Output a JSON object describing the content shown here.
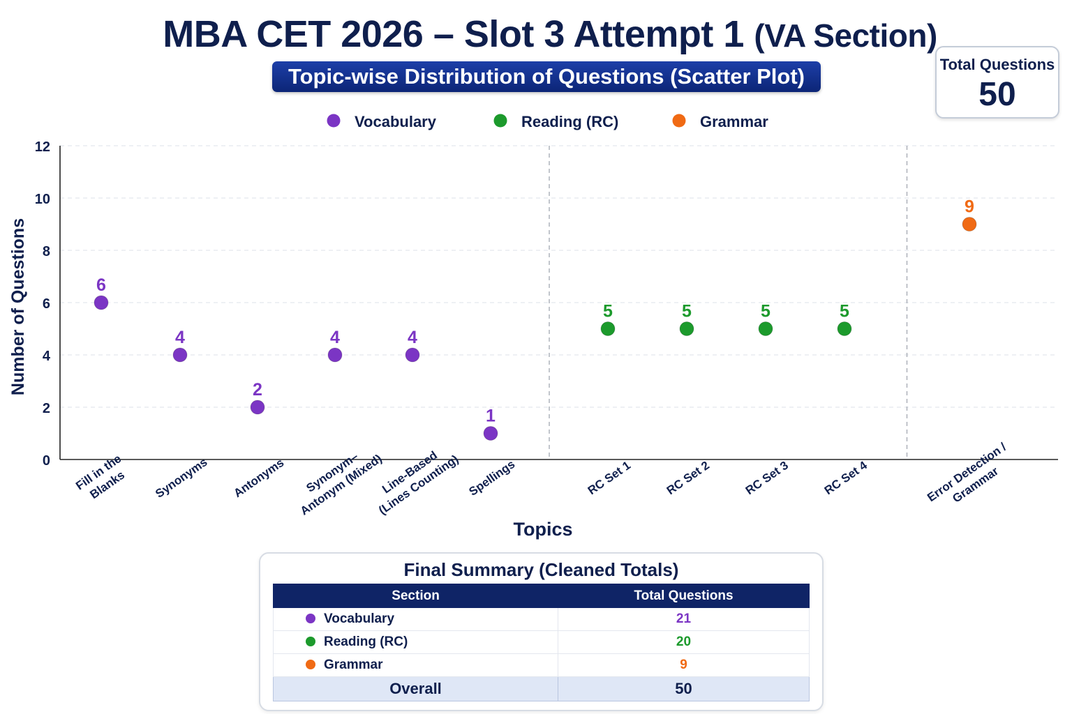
{
  "title": {
    "main": "MBA CET 2026 – Slot 3 Attempt 1",
    "suffix": "(VA Section)",
    "subtitle": "Topic-wise Distribution of Questions (Scatter Plot)"
  },
  "total_badge": {
    "label": "Total Questions",
    "value": "50"
  },
  "chart_data": {
    "type": "scatter",
    "xlabel": "Topics",
    "ylabel": "Number of Questions",
    "ylim": [
      0,
      12
    ],
    "yticks": [
      0,
      2,
      4,
      6,
      8,
      10,
      12
    ],
    "grid": true,
    "legend_placement": "top-center",
    "categories": [
      [
        "Fill in the",
        "Blanks"
      ],
      [
        "Synonyms"
      ],
      [
        "Antonyms"
      ],
      [
        "Synonym–",
        "Antonym (Mixed)"
      ],
      [
        "Line-Based",
        "(Lines Counting)"
      ],
      [
        "Spellings"
      ],
      [
        "RC Set 1"
      ],
      [
        "RC Set 2"
      ],
      [
        "RC Set 3"
      ],
      [
        "RC Set 4"
      ],
      [
        "Error Detection /",
        "Grammar"
      ]
    ],
    "series": [
      {
        "name": "Vocabulary",
        "color": "#7b35c4",
        "points": [
          [
            0,
            6
          ],
          [
            1,
            4
          ],
          [
            2,
            2
          ],
          [
            3,
            4
          ],
          [
            4,
            4
          ],
          [
            5,
            1
          ]
        ]
      },
      {
        "name": "Reading (RC)",
        "color": "#1c9a2c",
        "points": [
          [
            6,
            5
          ],
          [
            7,
            5
          ],
          [
            8,
            5
          ],
          [
            9,
            5
          ]
        ]
      },
      {
        "name": "Grammar",
        "color": "#f06a14",
        "points": [
          [
            10,
            9
          ]
        ]
      }
    ]
  },
  "summary": {
    "title": "Final Summary (Cleaned Totals)",
    "headers": [
      "Section",
      "Total Questions"
    ],
    "rows": [
      {
        "section": "Vocabulary",
        "total": "21",
        "color": "#7b35c4"
      },
      {
        "section": "Reading (RC)",
        "total": "20",
        "color": "#1c9a2c"
      },
      {
        "section": "Grammar",
        "total": "9",
        "color": "#f06a14"
      }
    ],
    "overall": {
      "label": "Overall",
      "total": "50"
    }
  }
}
